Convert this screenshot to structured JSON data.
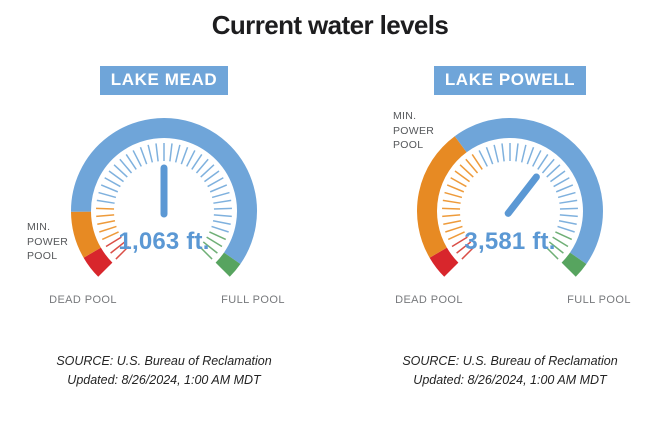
{
  "title": "Current water levels",
  "source": {
    "line1": "SOURCE: U.S. Bureau of Reclamation",
    "line2": "Updated: 8/26/2024, 1:00 AM MDT"
  },
  "colors": {
    "red": "#d8262c",
    "orange": "#e78a23",
    "blue": "#6fa5d9",
    "green": "#57a45f",
    "tick_red": "#da4e47",
    "tick_orange": "#ee9b3b",
    "tick_blue": "#7fb1de",
    "tick_green": "#6faf76",
    "needle": "#5b98d4",
    "value_text": "#5b98d4",
    "badge_bg": "#6fa5d9",
    "badge_text": "#ffffff",
    "pool_label_gray": "#77797c",
    "annotation_gray": "#55575a",
    "title_color": "#1d1d1f"
  },
  "chart_data": [
    {
      "type": "gauge",
      "title": "LAKE MEAD",
      "value": 1063,
      "unit": "ft.",
      "value_label": "1,063 ft.",
      "needle_fraction": 0.5,
      "annotation": "MIN.\nPOWER\nPOOL",
      "scale": {
        "start_label": "DEAD POOL",
        "end_label": "FULL POOL",
        "sweep_deg": 270
      },
      "zone_segments": [
        {
          "color_name": "red",
          "from": 0,
          "to": 0.055
        },
        {
          "color_name": "orange",
          "from": 0.055,
          "to": 0.165
        },
        {
          "color_name": "blue",
          "from": 0.165,
          "to": 0.962
        },
        {
          "color_name": "green",
          "from": 0.962,
          "to": 1
        }
      ],
      "ticks": {
        "count": 41,
        "zones": [
          {
            "color_name": "red",
            "to": 0.062
          },
          {
            "color_name": "orange",
            "to": 0.175
          },
          {
            "color_name": "blue",
            "to": 0.924
          },
          {
            "color_name": "green",
            "to": 1
          }
        ]
      }
    },
    {
      "type": "gauge",
      "title": "LAKE POWELL",
      "value": 3581,
      "unit": "ft.",
      "value_label": "3,581 ft.",
      "needle_fraction": 0.64,
      "annotation": "MIN.\nPOWER\nPOOL",
      "scale": {
        "start_label": "DEAD POOL",
        "end_label": "FULL POOL",
        "sweep_deg": 270
      },
      "zone_segments": [
        {
          "color_name": "red",
          "from": 0,
          "to": 0.055
        },
        {
          "color_name": "orange",
          "from": 0.055,
          "to": 0.365
        },
        {
          "color_name": "blue",
          "from": 0.365,
          "to": 0.962
        },
        {
          "color_name": "green",
          "from": 0.962,
          "to": 1
        }
      ],
      "ticks": {
        "count": 41,
        "zones": [
          {
            "color_name": "red",
            "to": 0.062
          },
          {
            "color_name": "orange",
            "to": 0.375
          },
          {
            "color_name": "blue",
            "to": 0.924
          },
          {
            "color_name": "green",
            "to": 1
          }
        ]
      }
    }
  ]
}
